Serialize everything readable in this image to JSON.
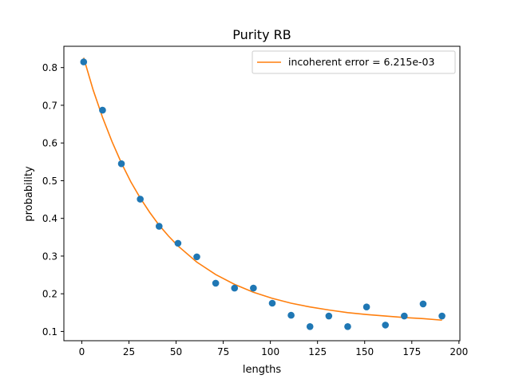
{
  "chart_data": {
    "type": "scatter",
    "title": "Purity RB",
    "xlabel": "lengths",
    "ylabel": "probability",
    "xlim": [
      -9.5,
      200.5
    ],
    "ylim": [
      0.0755,
      0.8565
    ],
    "xticks": [
      0,
      25,
      50,
      75,
      100,
      125,
      150,
      175,
      200
    ],
    "yticks": [
      0.1,
      0.2,
      0.3,
      0.4,
      0.5,
      0.6,
      0.7,
      0.8
    ],
    "xtick_labels": [
      "0",
      "25",
      "50",
      "75",
      "100",
      "125",
      "150",
      "175",
      "200"
    ],
    "ytick_labels": [
      "0.1",
      "0.2",
      "0.3",
      "0.4",
      "0.5",
      "0.6",
      "0.7",
      "0.8"
    ],
    "grid": false,
    "legend_position": "top-right",
    "legend": [
      "incoherent error = 6.215e-03"
    ],
    "series": [
      {
        "kind": "scatter",
        "color": "#1f77b4",
        "x": [
          1,
          11,
          21,
          31,
          41,
          51,
          61,
          71,
          81,
          91,
          101,
          111,
          121,
          131,
          141,
          151,
          161,
          171,
          181,
          191
        ],
        "y": [
          0.815,
          0.687,
          0.545,
          0.451,
          0.379,
          0.334,
          0.298,
          0.228,
          0.215,
          0.215,
          0.175,
          0.143,
          0.113,
          0.141,
          0.113,
          0.165,
          0.117,
          0.141,
          0.173,
          0.141
        ]
      },
      {
        "kind": "line",
        "name": "incoherent error = 6.215e-03",
        "color": "#ff7f0e",
        "x": [
          1,
          6,
          11,
          16,
          21,
          26,
          31,
          36,
          41,
          46,
          51,
          61,
          71,
          81,
          91,
          101,
          111,
          121,
          131,
          141,
          151,
          161,
          171,
          181,
          191
        ],
        "y": [
          0.826,
          0.741,
          0.668,
          0.604,
          0.547,
          0.497,
          0.454,
          0.416,
          0.382,
          0.353,
          0.327,
          0.284,
          0.251,
          0.225,
          0.204,
          0.188,
          0.175,
          0.165,
          0.157,
          0.15,
          0.145,
          0.141,
          0.137,
          0.134,
          0.13
        ]
      }
    ]
  }
}
